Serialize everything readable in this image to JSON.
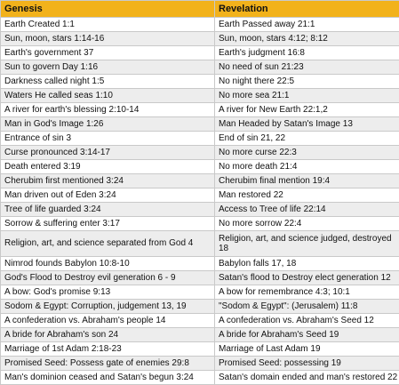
{
  "header": {
    "col1": "Genesis",
    "col2": "Revelation"
  },
  "rows": [
    [
      "Earth Created 1:1",
      "Earth Passed away 21:1"
    ],
    [
      "Sun, moon, stars 1:14-16",
      "Sun, moon, stars 4:12; 8:12"
    ],
    [
      "Earth's government 37",
      "Earth's judgment 16:8"
    ],
    [
      "Sun to govern Day 1:16",
      "No need of sun 21:23"
    ],
    [
      "Darkness called night 1:5",
      "No night there 22:5"
    ],
    [
      "Waters He called seas 1:10",
      "No more sea 21:1"
    ],
    [
      "A river for earth's blessing 2:10-14",
      "A river for New Earth 22:1,2"
    ],
    [
      "Man in God's Image 1:26",
      "Man Headed by Satan's Image 13"
    ],
    [
      "Entrance of sin 3",
      "End of sin 21, 22"
    ],
    [
      "Curse pronounced 3:14-17",
      "No more curse 22:3"
    ],
    [
      "Death entered 3:19",
      "No more death 21:4"
    ],
    [
      "Cherubim first mentioned 3:24",
      "Cherubim final mention 19:4"
    ],
    [
      "Man driven out of Eden 3:24",
      "Man restored 22"
    ],
    [
      "Tree of life guarded 3:24",
      "Access to Tree of life 22:14"
    ],
    [
      "Sorrow & suffering enter 3:17",
      "No more sorrow 22:4"
    ],
    [
      "Religion, art, and science separated from God 4",
      "Religion, art, and science judged, destroyed 18"
    ],
    [
      "Nimrod founds Babylon 10:8-10",
      "Babylon falls 17, 18"
    ],
    [
      "God's Flood to Destroy evil generation 6 - 9",
      "Satan's flood to Destroy elect generation 12"
    ],
    [
      "A bow: God's promise 9:13",
      "A bow for remembrance 4:3; 10:1"
    ],
    [
      "Sodom & Egypt: Corruption, judgement 13, 19",
      "\"Sodom & Egypt\": (Jerusalem) 11:8"
    ],
    [
      "A confederation vs. Abraham's people 14",
      "A confederation vs. Abraham's Seed 12"
    ],
    [
      "A bride for Abraham's son 24",
      "A bride for Abraham's Seed 19"
    ],
    [
      "Marriage of 1st Adam 2:18-23",
      "Marriage of Last Adam 19"
    ],
    [
      "Promised Seed: Possess gate of enemies 29:8",
      "Promised Seed: possessing 19"
    ],
    [
      "Man's dominion ceased and Satan's begun 3:24",
      "Satan's domain ended and man's restored 22"
    ]
  ]
}
